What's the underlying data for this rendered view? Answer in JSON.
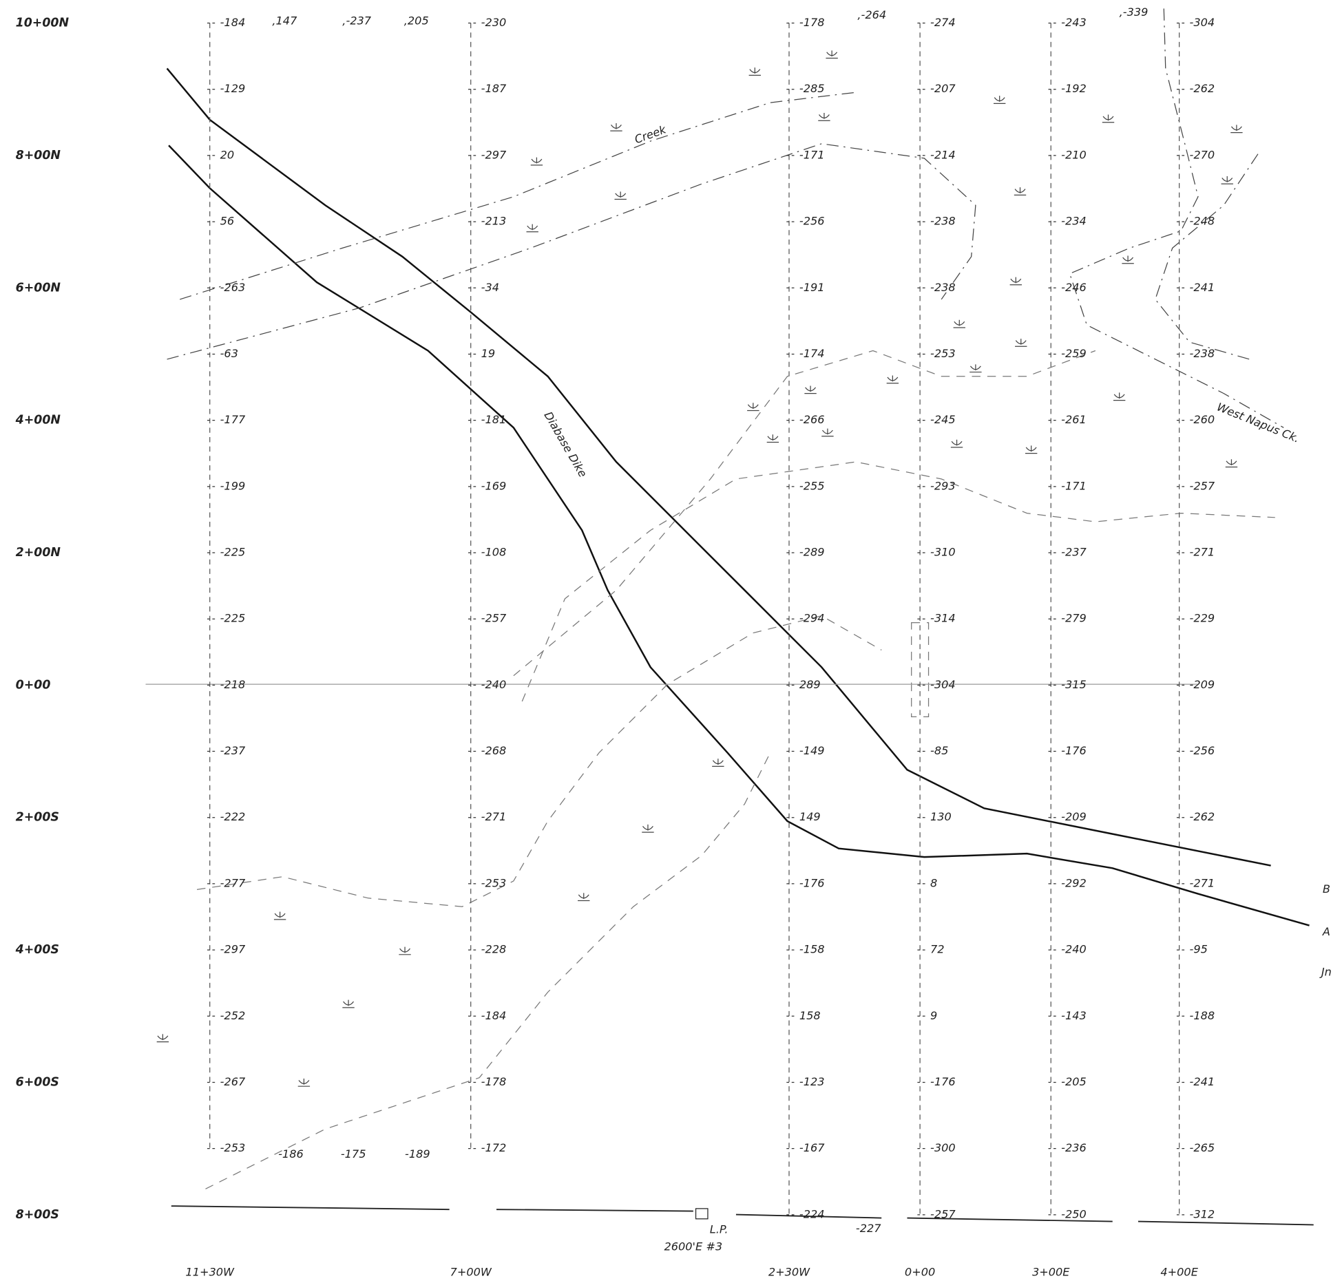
{
  "row_labels": [
    "10+00N",
    "8+00N",
    "6+00N",
    "4+00N",
    "2+00N",
    "0+00",
    "2+00S",
    "4+00S",
    "6+00S",
    "8+00S"
  ],
  "lines": [
    {
      "label": "11+30W",
      "readings": [
        "-184",
        "-129",
        "20",
        "56",
        "-263",
        "-63",
        "-177",
        "-199",
        "-225",
        "-225",
        "-218",
        "-237",
        "-222",
        "-277",
        "-297",
        "-252",
        "-267",
        "-253"
      ]
    },
    {
      "label": "7+00W",
      "readings": [
        "-230",
        "-187",
        "-297",
        "-213",
        "-34",
        "19",
        "-181",
        "-169",
        "-108",
        "-257",
        "-240",
        "-268",
        "-271",
        "-253",
        "-228",
        "-184",
        "-178",
        "-172"
      ]
    },
    {
      "label": "2+30W",
      "readings": [
        "-178",
        "-285",
        "-171",
        "-256",
        "-191",
        "-174",
        "-266",
        "-255",
        "-289",
        "-294",
        "289",
        "-149",
        "149",
        "-176",
        "-158",
        "158",
        "-123",
        "-167",
        "-224"
      ]
    },
    {
      "label": "0+00",
      "readings": [
        "-274",
        "-207",
        "-214",
        "-238",
        "-238",
        "-253",
        "-245",
        "-293",
        "-310",
        "-314",
        "-304",
        "-85",
        "130",
        "8",
        "72",
        "9",
        "-176",
        "-300",
        "-257"
      ]
    },
    {
      "label": "3+00E",
      "readings": [
        "-243",
        "-192",
        "-210",
        "-234",
        "-246",
        "-259",
        "-261",
        "-171",
        "-237",
        "-279",
        "-315",
        "-176",
        "-209",
        "-292",
        "-240",
        "-143",
        "-205",
        "-236",
        "-250"
      ]
    },
    {
      "label": "4+00E",
      "readings": [
        "-304",
        "-262",
        "-270",
        "-248",
        "-241",
        "-238",
        "-260",
        "-257",
        "-271",
        "-229",
        "-209",
        "-256",
        "-262",
        "-271",
        "-95",
        "-188",
        "-241",
        "-265",
        "-312"
      ]
    }
  ],
  "extra_readings": [
    ",147",
    ",-237",
    ",205",
    ",-264",
    ",-339",
    "-186",
    "-175",
    "-189",
    "-227"
  ],
  "annotations": [
    "Creek",
    "Diabase Dike",
    "West Napus Ck.",
    "L.P.",
    "2600'E #3",
    "B",
    "A",
    "Jn"
  ]
}
